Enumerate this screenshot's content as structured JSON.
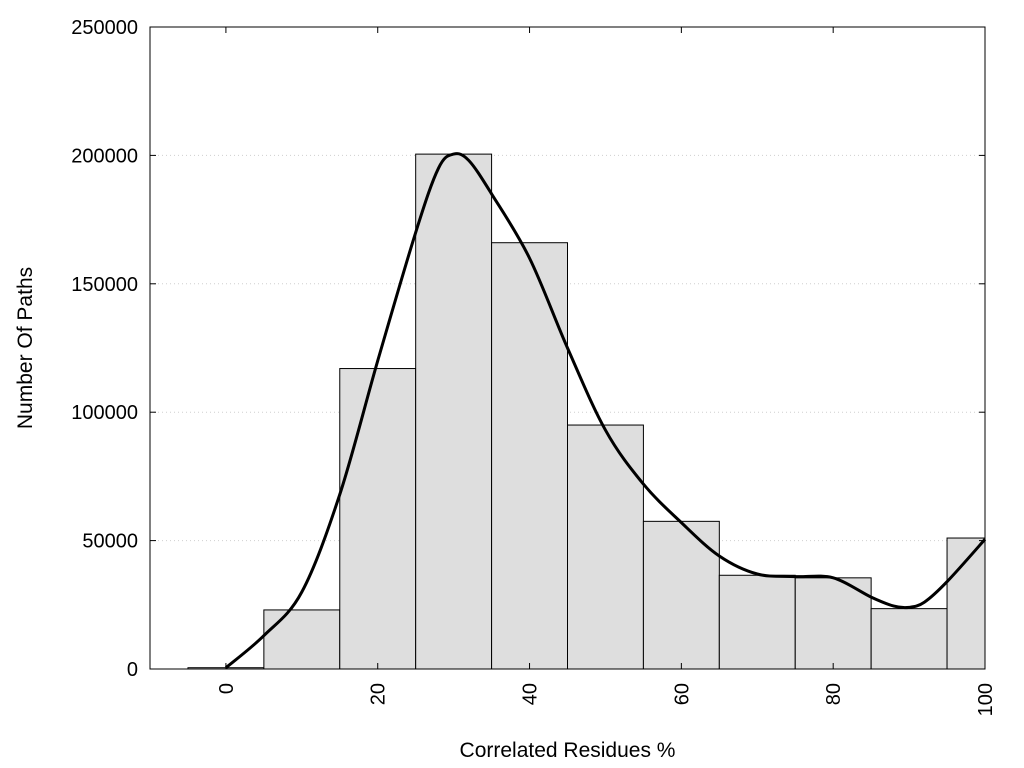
{
  "chart_data": {
    "type": "bar",
    "title": "",
    "xlabel": "Correlated Residues %",
    "ylabel": "Number Of Paths",
    "xlim": [
      -10,
      100
    ],
    "ylim": [
      0,
      250000
    ],
    "x_ticks": [
      0,
      20,
      40,
      60,
      80,
      100
    ],
    "y_ticks": [
      0,
      50000,
      100000,
      150000,
      200000,
      250000
    ],
    "grid": "horizontal dotted",
    "bar_width": 10,
    "bins": [
      {
        "x": 0,
        "value": 500
      },
      {
        "x": 10,
        "value": 23000
      },
      {
        "x": 20,
        "value": 117000
      },
      {
        "x": 30,
        "value": 200500
      },
      {
        "x": 40,
        "value": 166000
      },
      {
        "x": 50,
        "value": 95000
      },
      {
        "x": 60,
        "value": 57500
      },
      {
        "x": 70,
        "value": 36500
      },
      {
        "x": 80,
        "value": 35500
      },
      {
        "x": 90,
        "value": 23500
      },
      {
        "x": 100,
        "value": 51000
      }
    ],
    "curve": {
      "x": [
        0,
        5,
        10,
        15,
        20,
        25,
        28,
        30,
        32,
        35,
        40,
        45,
        50,
        55,
        60,
        65,
        70,
        75,
        80,
        85,
        88,
        90,
        92,
        95,
        100
      ],
      "y": [
        500,
        13000,
        30000,
        68000,
        120000,
        170000,
        195000,
        200500,
        198000,
        185000,
        160000,
        125000,
        93000,
        72000,
        57000,
        44000,
        37000,
        36000,
        35500,
        28000,
        24500,
        24000,
        26000,
        34000,
        50500
      ]
    },
    "colors": {
      "bar_fill": "#dedede",
      "bar_stroke": "#000000",
      "curve": "#000000",
      "grid": "#cfcfcf"
    }
  }
}
